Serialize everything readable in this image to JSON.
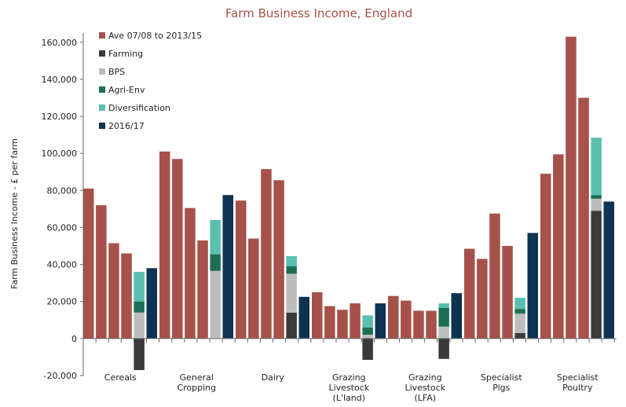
{
  "chart_data": {
    "type": "bar",
    "title": "Farm Business Income, England",
    "ylabel": "Farm Business Income - £ per farm",
    "xlabel": "",
    "ylim": [
      -20000,
      165000
    ],
    "yticks": [
      -20000,
      0,
      20000,
      40000,
      60000,
      80000,
      100000,
      120000,
      140000,
      160000
    ],
    "ytick_labels": [
      "-20,000",
      "0",
      "20,000",
      "40,000",
      "60,000",
      "80,000",
      "100,000",
      "120,000",
      "140,000",
      "160,000"
    ],
    "legend_position": "top-left",
    "legend": [
      {
        "name": "Ave 07/08 to 2013/15",
        "color": "#a6514a"
      },
      {
        "name": "Farming",
        "color": "#3a3a3a"
      },
      {
        "name": "BPS",
        "color": "#bdbdbd"
      },
      {
        "name": "Agri-Env",
        "color": "#1e6e55"
      },
      {
        "name": "Diversification",
        "color": "#5bbfb0"
      },
      {
        "name": "2016/17",
        "color": "#0e3352"
      }
    ],
    "categories": [
      {
        "label_lines": [
          "Cereals"
        ],
        "annual": [
          81000,
          72000,
          51500,
          46000
        ],
        "components": {
          "Farming": -17000,
          "BPS": 14000,
          "Agri-Env": 6000,
          "Diversification": 16000
        },
        "total_2016_17": 38000
      },
      {
        "label_lines": [
          "General",
          "Cropping"
        ],
        "annual": [
          101000,
          97000,
          70500,
          53000
        ],
        "components": {
          "Farming": 0,
          "BPS": 36500,
          "Agri-Env": 9000,
          "Diversification": 18500
        },
        "total_2016_17": 77500
      },
      {
        "label_lines": [
          "Dairy"
        ],
        "annual": [
          74500,
          54000,
          91500,
          85500
        ],
        "components": {
          "Farming": 14000,
          "BPS": 21000,
          "Agri-Env": 4000,
          "Diversification": 5500
        },
        "total_2016_17": 22500
      },
      {
        "label_lines": [
          "Grazing",
          "Livestock",
          "(L'land)"
        ],
        "annual": [
          25000,
          17500,
          15500,
          19000
        ],
        "components": {
          "Farming": -11500,
          "BPS": 2000,
          "Agri-Env": 4000,
          "Diversification": 6500
        },
        "total_2016_17": 19000
      },
      {
        "label_lines": [
          "Grazing",
          "Livestock",
          "(LFA)"
        ],
        "annual": [
          23000,
          20500,
          15000,
          15000
        ],
        "components": {
          "Farming": -11000,
          "BPS": 6500,
          "Agri-Env": 10000,
          "Diversification": 2500
        },
        "total_2016_17": 24500
      },
      {
        "label_lines": [
          "Specialist",
          "Pigs"
        ],
        "annual": [
          48500,
          43000,
          67500,
          50000
        ],
        "components": {
          "Farming": 3000,
          "BPS": 10500,
          "Agri-Env": 2500,
          "Diversification": 6000
        },
        "total_2016_17": 57000
      },
      {
        "label_lines": [
          "Specialist",
          "Poultry"
        ],
        "annual": [
          89000,
          99500,
          163000,
          130000
        ],
        "components": {
          "Farming": 69000,
          "BPS": 6500,
          "Agri-Env": 2000,
          "Diversification": 31000
        },
        "total_2016_17": 74000
      }
    ]
  }
}
